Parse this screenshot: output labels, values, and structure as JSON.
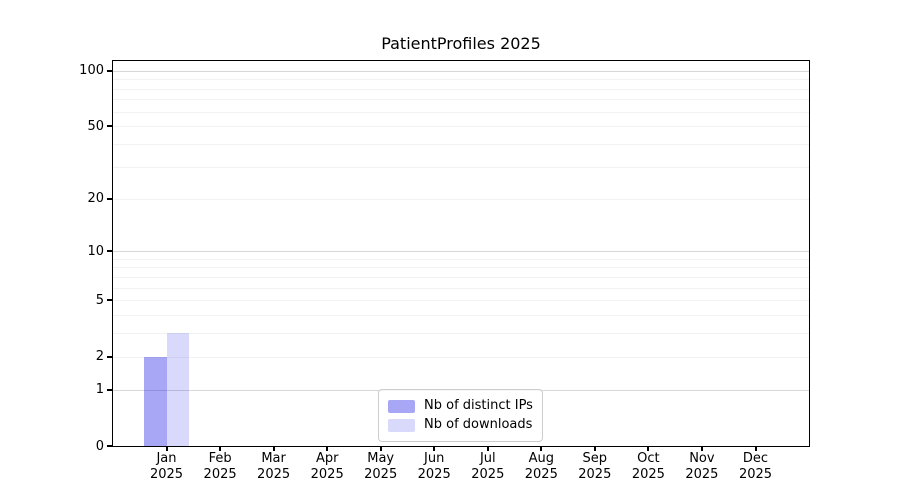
{
  "chart_data": {
    "type": "bar",
    "title": "PatientProfiles 2025",
    "categories": [
      {
        "month": "Jan",
        "year": "2025"
      },
      {
        "month": "Feb",
        "year": "2025"
      },
      {
        "month": "Mar",
        "year": "2025"
      },
      {
        "month": "Apr",
        "year": "2025"
      },
      {
        "month": "May",
        "year": "2025"
      },
      {
        "month": "Jun",
        "year": "2025"
      },
      {
        "month": "Jul",
        "year": "2025"
      },
      {
        "month": "Aug",
        "year": "2025"
      },
      {
        "month": "Sep",
        "year": "2025"
      },
      {
        "month": "Oct",
        "year": "2025"
      },
      {
        "month": "Nov",
        "year": "2025"
      },
      {
        "month": "Dec",
        "year": "2025"
      }
    ],
    "series": [
      {
        "name": "Nb of distinct IPs",
        "color": "rgba(10,10,230,0.36)",
        "values": [
          2,
          0,
          0,
          0,
          0,
          0,
          0,
          0,
          0,
          0,
          0,
          0
        ]
      },
      {
        "name": "Nb of downloads",
        "color": "rgba(10,10,230,0.155)",
        "values": [
          3,
          0,
          0,
          0,
          0,
          0,
          0,
          0,
          0,
          0,
          0,
          0
        ]
      }
    ],
    "xlabel": "",
    "ylabel": "",
    "y_ticks": [
      100,
      50,
      20,
      10,
      5,
      2,
      1,
      0
    ],
    "y_scale": "log1p",
    "ylim": [
      0,
      113
    ],
    "legend_position": "lower-center",
    "grid": {
      "orientation": "horizontal",
      "major_values": [
        1,
        10,
        100
      ],
      "minor_values": [
        2,
        3,
        4,
        5,
        6,
        7,
        8,
        9,
        20,
        30,
        40,
        50,
        60,
        70,
        80,
        90
      ],
      "major_color": "#d8d8d8",
      "minor_color": "#f2f2f2"
    },
    "colors": {
      "spine": "#000000",
      "tick_label": "#000000",
      "background": "#ffffff"
    }
  }
}
